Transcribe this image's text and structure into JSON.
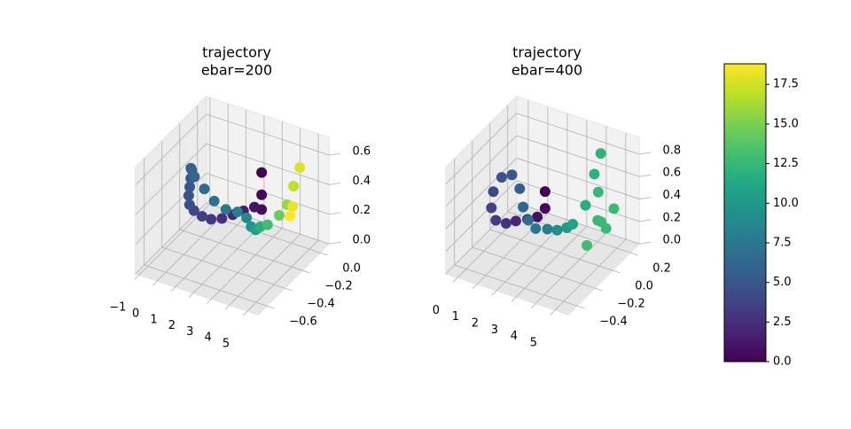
{
  "chart_data": [
    {
      "type": "scatter3d",
      "title": [
        "trajectory",
        "ebar=200"
      ],
      "xlim": [
        -1.2,
        5.6
      ],
      "ylim": [
        -0.7,
        0.1
      ],
      "zlim": [
        0,
        0.72
      ],
      "xticks": [
        {
          "value": -1,
          "label": "−1"
        },
        0,
        1,
        2,
        3,
        4,
        5
      ],
      "yticks": [
        {
          "value": 0,
          "label": "0.0"
        },
        {
          "value": -0.2,
          "label": "−0.2"
        },
        {
          "value": -0.4,
          "label": "−0.4"
        },
        {
          "value": -0.6,
          "label": "−0.6"
        }
      ],
      "zticks": [
        {
          "value": 0,
          "label": "0.0"
        },
        {
          "value": 0.2,
          "label": "0.2"
        },
        {
          "value": 0.4,
          "label": "0.4"
        },
        {
          "value": 0.6,
          "label": "0.6"
        }
      ],
      "x": [
        2.6,
        2.6,
        2.6,
        2.2,
        1.6,
        1.0,
        0.4,
        -0.2,
        -0.7,
        -0.9,
        -0.9,
        -0.7,
        -0.4,
        -0.1,
        0.2,
        0.4,
        0.6,
        0.9,
        1.2,
        1.6,
        2.0,
        2.5,
        3.0,
        3.5,
        4.0,
        4.4,
        4.8,
        5.0,
        5.1,
        5.2,
        5.3,
        5.4
      ],
      "y": [
        -0.05,
        -0.05,
        -0.05,
        -0.05,
        -0.05,
        -0.05,
        -0.05,
        -0.05,
        -0.05,
        -0.1,
        -0.15,
        -0.2,
        -0.25,
        -0.3,
        -0.35,
        -0.4,
        -0.4,
        -0.35,
        -0.3,
        -0.25,
        -0.2,
        -0.2,
        -0.25,
        -0.3,
        -0.35,
        -0.35,
        -0.3,
        -0.25,
        -0.2,
        -0.15,
        -0.25,
        -0.3
      ],
      "z": [
        0.45,
        0.3,
        0.2,
        0.2,
        0.15,
        0.1,
        0.05,
        0.02,
        0.02,
        0.08,
        0.15,
        0.25,
        0.35,
        0.45,
        0.55,
        0.6,
        0.55,
        0.45,
        0.35,
        0.28,
        0.25,
        0.23,
        0.22,
        0.25,
        0.32,
        0.35,
        0.4,
        0.45,
        0.55,
        0.65,
        0.45,
        0.42
      ],
      "c": [
        0,
        0.3,
        0.6,
        1.0,
        1.5,
        2.0,
        2.5,
        3.0,
        3.5,
        3.9,
        4.3,
        4.7,
        5.0,
        5.3,
        5.6,
        5.9,
        6.2,
        6.6,
        7.0,
        7.5,
        8.0,
        8.7,
        9.5,
        10.5,
        11.8,
        13.0,
        14.5,
        15.8,
        17.0,
        17.8,
        18.2,
        18.7
      ]
    },
    {
      "type": "scatter3d",
      "title": [
        "trajectory",
        "ebar=400"
      ],
      "xlim": [
        -0.6,
        5.7
      ],
      "ylim": [
        -0.5,
        0.3
      ],
      "zlim": [
        0,
        0.95
      ],
      "xticks": [
        0,
        1,
        2,
        3,
        4,
        5
      ],
      "yticks": [
        {
          "value": 0.2,
          "label": "0.2"
        },
        {
          "value": 0,
          "label": "0.0"
        },
        {
          "value": -0.2,
          "label": "−0.2"
        },
        {
          "value": -0.4,
          "label": "−0.4"
        }
      ],
      "zticks": [
        {
          "value": 0,
          "label": "0.0"
        },
        {
          "value": 0.2,
          "label": "0.2"
        },
        {
          "value": 0.4,
          "label": "0.4"
        },
        {
          "value": 0.6,
          "label": "0.6"
        },
        {
          "value": 0.8,
          "label": "0.8"
        }
      ],
      "x": [
        2.0,
        2.0,
        1.6,
        1.1,
        0.5,
        0,
        -0.3,
        -0.3,
        -0.2,
        0,
        0.3,
        0.7,
        1.1,
        1.6,
        2.2,
        2.8,
        3.3,
        3.8,
        4.1,
        4.3,
        4.3,
        4.4,
        4.5,
        4.7,
        4.9,
        5.1,
        5.3,
        4.6
      ],
      "y": [
        0.05,
        0.05,
        0.05,
        0.05,
        0.05,
        0.05,
        0.0,
        -0.05,
        -0.05,
        0,
        0.05,
        0.05,
        0.0,
        -0.05,
        -0.1,
        -0.1,
        -0.1,
        -0.1,
        -0.1,
        0.0,
        0.1,
        0.15,
        0.1,
        0.05,
        0.1,
        0.0,
        0.1,
        -0.05
      ],
      "z": [
        0.45,
        0.3,
        0.2,
        0.15,
        0.1,
        0.05,
        0.1,
        0.25,
        0.4,
        0.5,
        0.5,
        0.4,
        0.3,
        0.25,
        0.25,
        0.28,
        0.3,
        0.35,
        0.4,
        0.5,
        0.7,
        0.85,
        0.55,
        0.35,
        0.25,
        0.4,
        0.45,
        0.2
      ],
      "c": [
        0,
        0.4,
        0.9,
        1.5,
        2.1,
        2.7,
        3.2,
        3.7,
        4.2,
        4.7,
        5.1,
        5.6,
        6.1,
        6.7,
        7.4,
        8.2,
        9.0,
        10.0,
        11.0,
        11.6,
        12.0,
        12.2,
        12.4,
        12.5,
        12.6,
        12.7,
        12.8,
        12.9
      ]
    },
    {
      "type": "colorbar",
      "colormap": "viridis",
      "clim": [
        0,
        18.8
      ],
      "cticks": [
        {
          "value": 0,
          "label": "0.0"
        },
        {
          "value": 2.5,
          "label": "2.5"
        },
        {
          "value": 5,
          "label": "5.0"
        },
        {
          "value": 7.5,
          "label": "7.5"
        },
        {
          "value": 10,
          "label": "10.0"
        },
        {
          "value": 12.5,
          "label": "12.5"
        },
        {
          "value": 15,
          "label": "15.0"
        },
        {
          "value": 17.5,
          "label": "17.5"
        }
      ]
    }
  ]
}
